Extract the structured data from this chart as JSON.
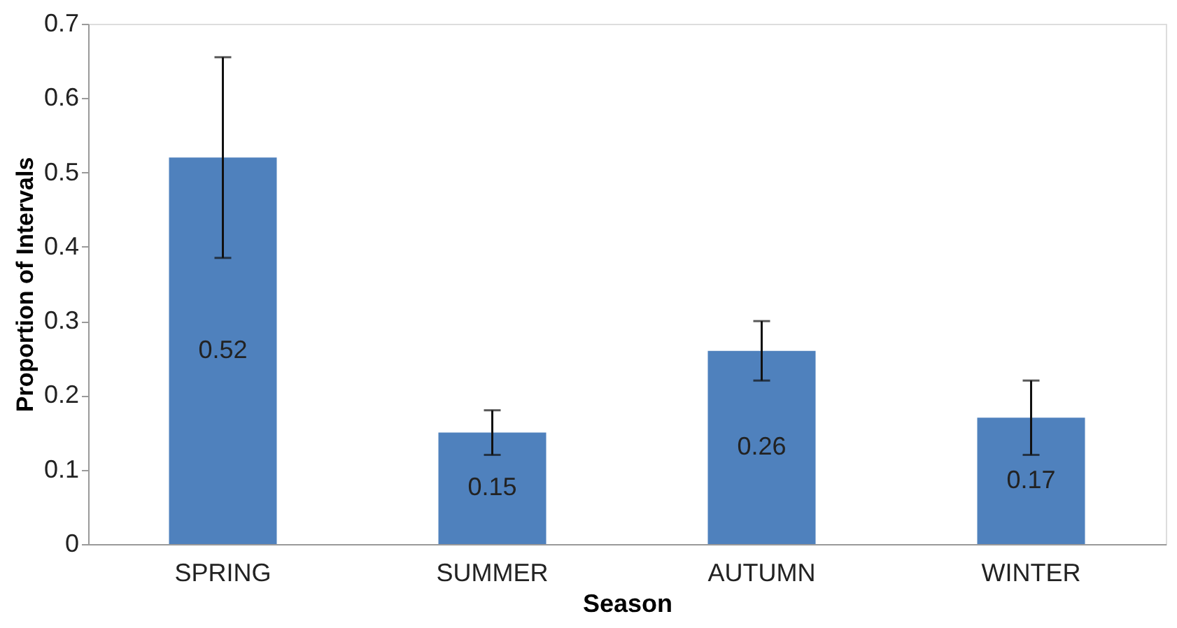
{
  "chart_data": {
    "type": "bar",
    "xlabel": "Season",
    "ylabel": "Proportion of Intervals",
    "categories": [
      "SPRING",
      "SUMMER",
      "AUTUMN",
      "WINTER"
    ],
    "values": [
      0.52,
      0.15,
      0.26,
      0.17
    ],
    "errors": [
      0.135,
      0.03,
      0.04,
      0.05
    ],
    "color": "#4f81bd",
    "ylim": [
      0,
      0.7
    ],
    "yticks": [
      0,
      0.1,
      0.2,
      0.3,
      0.4,
      0.5,
      0.6,
      0.7
    ],
    "data_labels": true,
    "grid": false
  }
}
